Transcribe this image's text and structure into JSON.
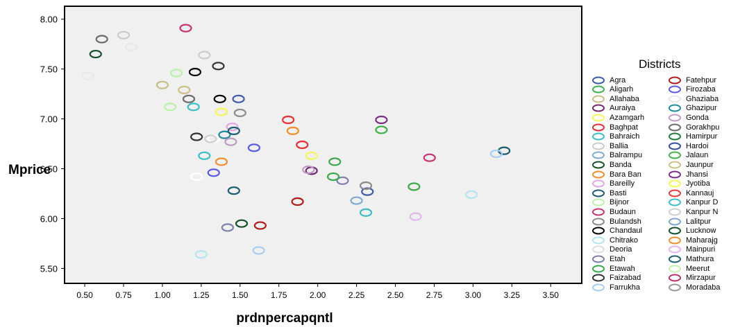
{
  "chart_data": {
    "type": "scatter",
    "title": "",
    "xlabel": "prdnpercapqntl",
    "ylabel": "Mprice",
    "xlim": [
      0.37,
      3.7
    ],
    "ylim": [
      5.35,
      8.13
    ],
    "xticks": [
      "0.50",
      "0.75",
      "1.00",
      "1.25",
      "1.50",
      "1.75",
      "2.00",
      "2.25",
      "2.50",
      "2.75",
      "3.00",
      "3.25",
      "3.50"
    ],
    "xtick_values": [
      0.5,
      0.75,
      1.0,
      1.25,
      1.5,
      1.75,
      2.0,
      2.25,
      2.5,
      2.75,
      3.0,
      3.25,
      3.5
    ],
    "yticks": [
      "5.50",
      "6.00",
      "6.50",
      "7.00",
      "7.50",
      "8.00"
    ],
    "ytick_values": [
      5.5,
      6.0,
      6.5,
      7.0,
      7.5,
      8.0
    ],
    "plot_background": "#f0f0f0",
    "marker": "open-ellipse",
    "legend_title": "Districts",
    "legend_placement": "right",
    "series": [
      {
        "name": "Agra",
        "color": "#3e5aa8",
        "points": [
          [
            1.49,
            7.2
          ],
          [
            2.32,
            6.27
          ]
        ]
      },
      {
        "name": "Aligarh",
        "color": "#3eb04a",
        "points": [
          [
            2.41,
            6.89
          ]
        ]
      },
      {
        "name": "Allahaba",
        "color": "#c9bd87",
        "points": [
          [
            1.0,
            7.34
          ]
        ]
      },
      {
        "name": "Auraiya",
        "color": "#73256f",
        "points": [
          [
            1.96,
            6.48
          ]
        ]
      },
      {
        "name": "Azamgarh",
        "color": "#f5f55a",
        "points": [
          [
            1.38,
            7.07
          ],
          [
            1.96,
            6.63
          ]
        ]
      },
      {
        "name": "Baghpat",
        "color": "#e62e36",
        "points": [
          [
            1.81,
            6.99
          ],
          [
            1.9,
            6.74
          ]
        ]
      },
      {
        "name": "Bahraich",
        "color": "#3cbcc4",
        "points": [
          [
            1.27,
            6.63
          ],
          [
            2.31,
            6.06
          ]
        ]
      },
      {
        "name": "Ballia",
        "color": "#cccccc",
        "points": [
          [
            0.75,
            7.84
          ],
          [
            1.27,
            7.64
          ]
        ]
      },
      {
        "name": "Balrampu",
        "color": "#7ea9d2",
        "points": [
          [
            2.25,
            6.18
          ]
        ]
      },
      {
        "name": "Banda",
        "color": "#174f2b",
        "points": [
          [
            0.57,
            7.65
          ],
          [
            1.51,
            5.95
          ]
        ]
      },
      {
        "name": "Bara Ban",
        "color": "#f28e2b",
        "points": [
          [
            1.84,
            6.88
          ],
          [
            1.38,
            6.57
          ]
        ]
      },
      {
        "name": "Bareilly",
        "color": "#e0a6e6",
        "points": [
          [
            1.45,
            6.92
          ]
        ]
      },
      {
        "name": "Basti",
        "color": "#1b5b6e",
        "points": [
          [
            1.46,
            6.28
          ],
          [
            3.2,
            6.68
          ]
        ]
      },
      {
        "name": "Bijnor",
        "color": "#b8f2a8",
        "points": [
          [
            1.09,
            7.46
          ],
          [
            1.05,
            7.12
          ]
        ]
      },
      {
        "name": "Budaun",
        "color": "#c4346e",
        "points": [
          [
            1.15,
            7.91
          ],
          [
            2.72,
            6.61
          ]
        ]
      },
      {
        "name": "Bulandsh",
        "color": "#8a8a8a",
        "points": [
          [
            1.5,
            7.06
          ],
          [
            2.31,
            6.33
          ]
        ]
      },
      {
        "name": "Chandaul",
        "color": "#000000",
        "points": [
          [
            1.21,
            7.47
          ],
          [
            1.37,
            7.2
          ]
        ]
      },
      {
        "name": "Chitrako",
        "color": "#b6e4ef",
        "points": [
          [
            2.99,
            6.24
          ],
          [
            1.25,
            5.64
          ]
        ]
      },
      {
        "name": "Deoria",
        "color": "#ffffff",
        "points": [
          [
            1.22,
            6.42
          ],
          [
            1.33,
            6.8
          ]
        ]
      },
      {
        "name": "Etah",
        "color": "#7b7fad",
        "points": [
          [
            1.42,
            5.91
          ],
          [
            2.16,
            6.38
          ]
        ]
      },
      {
        "name": "Etawah",
        "color": "#3aa84a",
        "points": [
          [
            2.11,
            6.57
          ],
          [
            2.1,
            6.42
          ],
          [
            2.62,
            6.32
          ]
        ]
      },
      {
        "name": "Faizabad",
        "color": "#333333",
        "points": [
          [
            1.36,
            7.53
          ],
          [
            1.22,
            6.82
          ]
        ]
      },
      {
        "name": "Farrukha",
        "color": "#a9cdf0",
        "points": [
          [
            1.62,
            5.68
          ],
          [
            3.15,
            6.65
          ]
        ]
      },
      {
        "name": "Fatehpur",
        "color": "#b01c1c",
        "points": [
          [
            1.63,
            5.93
          ],
          [
            1.87,
            6.17
          ]
        ]
      },
      {
        "name": "Firozaba",
        "color": "#5858e6",
        "points": [
          [
            1.59,
            6.71
          ],
          [
            1.33,
            6.46
          ]
        ]
      },
      {
        "name": "Ghaziaba",
        "color": "#e8e8e8",
        "points": [
          [
            0.8,
            7.72
          ],
          [
            0.52,
            7.43
          ]
        ]
      },
      {
        "name": "Ghazipur",
        "color": "#1e8a9c",
        "points": [
          [
            1.4,
            6.84
          ]
        ]
      },
      {
        "name": "Gonda",
        "color": "#c09ac7",
        "points": [
          [
            1.44,
            6.77
          ],
          [
            1.94,
            6.49
          ]
        ]
      },
      {
        "name": "Gorakhpu",
        "color": "#6b6b6b",
        "points": [
          [
            0.61,
            7.8
          ],
          [
            1.17,
            7.2
          ]
        ]
      },
      {
        "name": "Jhansi",
        "color": "#7a2f88",
        "points": [
          [
            2.41,
            6.99
          ]
        ]
      },
      {
        "name": "Kanpur D",
        "color": "#3bbec5",
        "points": [
          [
            1.2,
            7.12
          ]
        ]
      },
      {
        "name": "Kanpur N",
        "color": "#cfcfcf",
        "points": [
          [
            1.31,
            6.8
          ]
        ]
      },
      {
        "name": "Jaunpur",
        "color": "#cdbf86",
        "points": [
          [
            1.14,
            7.29
          ]
        ]
      },
      {
        "name": "Mainpuri",
        "color": "#e2b7ea",
        "points": [
          [
            2.63,
            6.02
          ]
        ]
      },
      {
        "name": "Mathura",
        "color": "#1e5e74",
        "points": [
          [
            1.46,
            6.88
          ]
        ]
      }
    ],
    "legend": [
      {
        "name": "Agra",
        "color": "#3e5aa8"
      },
      {
        "name": "Aligarh",
        "color": "#3eb04a"
      },
      {
        "name": "Allahaba",
        "color": "#c9bd87"
      },
      {
        "name": "Auraiya",
        "color": "#73256f"
      },
      {
        "name": "Azamgarh",
        "color": "#f5f55a"
      },
      {
        "name": "Baghpat",
        "color": "#e62e36"
      },
      {
        "name": "Bahraich",
        "color": "#3cbcc4"
      },
      {
        "name": "Ballia",
        "color": "#cccccc"
      },
      {
        "name": "Balrampu",
        "color": "#7ea9d2"
      },
      {
        "name": "Banda",
        "color": "#174f2b"
      },
      {
        "name": "Bara Ban",
        "color": "#f28e2b"
      },
      {
        "name": "Bareilly",
        "color": "#e0a6e6"
      },
      {
        "name": "Basti",
        "color": "#1b5b6e"
      },
      {
        "name": "Bijnor",
        "color": "#b8f2a8"
      },
      {
        "name": "Budaun",
        "color": "#c4346e"
      },
      {
        "name": "Bulandsh",
        "color": "#8a8a8a"
      },
      {
        "name": "Chandaul",
        "color": "#000000"
      },
      {
        "name": "Chitrako",
        "color": "#b6e4ef"
      },
      {
        "name": "Deoria",
        "color": "#ffffff"
      },
      {
        "name": "Etah",
        "color": "#7b7fad"
      },
      {
        "name": "Etawah",
        "color": "#3aa84a"
      },
      {
        "name": "Faizabad",
        "color": "#333333"
      },
      {
        "name": "Farrukha",
        "color": "#a9cdf0"
      },
      {
        "name": "Fatehpur",
        "color": "#b01c1c"
      },
      {
        "name": "Firozaba",
        "color": "#5858e6"
      },
      {
        "name": "Ghaziaba",
        "color": "#e8e8e8"
      },
      {
        "name": "Ghazipur",
        "color": "#1e8a9c"
      },
      {
        "name": "Gonda",
        "color": "#c09ac7"
      },
      {
        "name": "Gorakhpu",
        "color": "#6b6b6b"
      },
      {
        "name": "Hamirpur",
        "color": "#1f7d3e"
      },
      {
        "name": "Hardoi",
        "color": "#344f9a"
      },
      {
        "name": "Jalaun",
        "color": "#48b34c"
      },
      {
        "name": "Jaunpur",
        "color": "#cdbf86"
      },
      {
        "name": "Jhansi",
        "color": "#7a2f88"
      },
      {
        "name": "Jyotiba",
        "color": "#f7f758"
      },
      {
        "name": "Kannauj",
        "color": "#ea3a3a"
      },
      {
        "name": "Kanpur D",
        "color": "#3bbec5"
      },
      {
        "name": "Kanpur N",
        "color": "#cfcfcf"
      },
      {
        "name": "Lalitpur",
        "color": "#7ea6d0"
      },
      {
        "name": "Lucknow",
        "color": "#174f2b"
      },
      {
        "name": "Maharajg",
        "color": "#f28e2b"
      },
      {
        "name": "Mainpuri",
        "color": "#e2b7ea"
      },
      {
        "name": "Mathura",
        "color": "#1e5e74"
      },
      {
        "name": "Meerut",
        "color": "#c2f0b3"
      },
      {
        "name": "Mirzapur",
        "color": "#c0306e"
      },
      {
        "name": "Moradaba",
        "color": "#999999"
      }
    ]
  }
}
